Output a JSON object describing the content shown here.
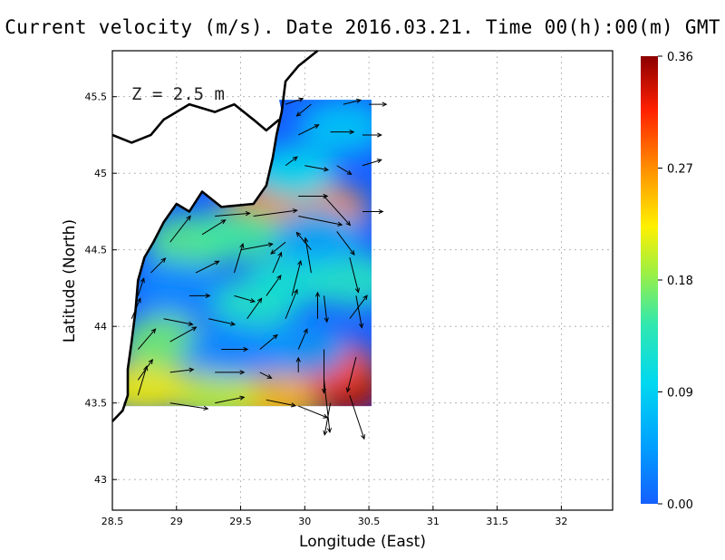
{
  "title": "Current velocity (m/s). Date 2016.03.21. Time 00(h):00(m) GMT",
  "depth_label": "Z = 2.5 m",
  "chart_data": {
    "type": "heatmap",
    "title": "Current velocity (m/s). Date 2016.03.21. Time 00(h):00(m) GMT",
    "xlabel": "Longitude (East)",
    "ylabel": "Latitude (North)",
    "xlim": [
      28.5,
      32.4
    ],
    "ylim": [
      42.8,
      45.8
    ],
    "x_ticks": [
      "28.5",
      "29",
      "29.5",
      "30",
      "30.5",
      "31",
      "31.5",
      "32"
    ],
    "y_ticks": [
      "43",
      "43.5",
      "44",
      "44.5",
      "45",
      "45.5"
    ],
    "grid": true,
    "colorbar": {
      "range": [
        0.0,
        0.36
      ],
      "ticks": [
        "0.00",
        "0.09",
        "0.18",
        "0.27",
        "0.36"
      ],
      "colors": [
        "#1560ff",
        "#00b4ff",
        "#00e6e6",
        "#40e0a0",
        "#b4f03c",
        "#fff000",
        "#ff9600",
        "#ff2800",
        "#8c0000"
      ]
    },
    "coastline_points": [
      [
        28.5,
        43.38
      ],
      [
        28.58,
        43.45
      ],
      [
        28.62,
        43.55
      ],
      [
        28.62,
        43.72
      ],
      [
        28.65,
        43.9
      ],
      [
        28.68,
        44.1
      ],
      [
        28.7,
        44.3
      ],
      [
        28.75,
        44.45
      ],
      [
        28.82,
        44.55
      ],
      [
        28.9,
        44.68
      ],
      [
        29.0,
        44.8
      ],
      [
        29.1,
        44.75
      ],
      [
        29.2,
        44.88
      ],
      [
        29.35,
        44.78
      ],
      [
        29.6,
        44.8
      ],
      [
        29.7,
        44.92
      ],
      [
        29.75,
        45.1
      ],
      [
        29.78,
        45.25
      ],
      [
        29.82,
        45.4
      ],
      [
        29.85,
        45.6
      ],
      [
        29.95,
        45.7
      ],
      [
        30.1,
        45.8
      ]
    ],
    "north_coast_points": [
      [
        28.5,
        45.25
      ],
      [
        28.65,
        45.2
      ],
      [
        28.8,
        45.25
      ],
      [
        28.9,
        45.35
      ],
      [
        29.1,
        45.45
      ],
      [
        29.3,
        45.4
      ],
      [
        29.45,
        45.45
      ],
      [
        29.6,
        45.35
      ],
      [
        29.7,
        45.28
      ],
      [
        29.8,
        45.35
      ]
    ],
    "speed_field": [
      {
        "lon": 29.7,
        "lat": 44.8,
        "speed": 0.33
      },
      {
        "lon": 29.85,
        "lat": 44.75,
        "speed": 0.28
      },
      {
        "lon": 30.15,
        "lat": 44.75,
        "speed": 0.27
      },
      {
        "lon": 30.3,
        "lat": 43.58,
        "speed": 0.35
      },
      {
        "lon": 30.2,
        "lat": 43.75,
        "speed": 0.3
      },
      {
        "lon": 29.75,
        "lat": 43.52,
        "speed": 0.25
      },
      {
        "lon": 29.3,
        "lat": 43.55,
        "speed": 0.2
      },
      {
        "lon": 28.75,
        "lat": 43.6,
        "speed": 0.22
      },
      {
        "lon": 28.9,
        "lat": 43.9,
        "speed": 0.17
      },
      {
        "lon": 29.1,
        "lat": 44.55,
        "speed": 0.16
      },
      {
        "lon": 29.5,
        "lat": 44.6,
        "speed": 0.15
      },
      {
        "lon": 29.9,
        "lat": 45.0,
        "speed": 0.1
      },
      {
        "lon": 30.3,
        "lat": 45.3,
        "speed": 0.08
      },
      {
        "lon": 29.6,
        "lat": 44.15,
        "speed": 0.13
      },
      {
        "lon": 29.9,
        "lat": 44.3,
        "speed": 0.12
      },
      {
        "lon": 30.4,
        "lat": 44.3,
        "speed": 0.13
      },
      {
        "lon": 29.4,
        "lat": 43.85,
        "speed": 0.03
      },
      {
        "lon": 29.0,
        "lat": 44.25,
        "speed": 0.03
      },
      {
        "lon": 30.0,
        "lat": 43.85,
        "speed": 0.04
      },
      {
        "lon": 30.1,
        "lat": 44.6,
        "speed": 0.05
      }
    ],
    "vectors": [
      {
        "lon": 29.85,
        "lat": 45.45,
        "u": 0.12,
        "v": 0.04
      },
      {
        "lon": 30.05,
        "lat": 45.45,
        "u": -0.1,
        "v": -0.08
      },
      {
        "lon": 30.3,
        "lat": 45.45,
        "u": 0.12,
        "v": 0.03
      },
      {
        "lon": 30.5,
        "lat": 45.45,
        "u": 0.12,
        "v": 0.0
      },
      {
        "lon": 29.95,
        "lat": 45.25,
        "u": 0.14,
        "v": 0.07
      },
      {
        "lon": 30.2,
        "lat": 45.27,
        "u": 0.16,
        "v": 0.0
      },
      {
        "lon": 30.45,
        "lat": 45.25,
        "u": 0.13,
        "v": 0.0
      },
      {
        "lon": 29.85,
        "lat": 45.05,
        "u": 0.08,
        "v": 0.06
      },
      {
        "lon": 30.0,
        "lat": 45.05,
        "u": 0.16,
        "v": -0.03
      },
      {
        "lon": 30.25,
        "lat": 45.05,
        "u": 0.1,
        "v": -0.06
      },
      {
        "lon": 30.45,
        "lat": 45.05,
        "u": 0.13,
        "v": 0.04
      },
      {
        "lon": 29.95,
        "lat": 44.85,
        "u": 0.2,
        "v": 0.0
      },
      {
        "lon": 30.15,
        "lat": 44.85,
        "u": 0.18,
        "v": -0.2
      },
      {
        "lon": 30.45,
        "lat": 44.75,
        "u": 0.14,
        "v": 0.0
      },
      {
        "lon": 29.3,
        "lat": 44.72,
        "u": 0.24,
        "v": 0.02
      },
      {
        "lon": 29.6,
        "lat": 44.72,
        "u": 0.3,
        "v": 0.04
      },
      {
        "lon": 29.95,
        "lat": 44.72,
        "u": 0.3,
        "v": -0.06
      },
      {
        "lon": 30.25,
        "lat": 44.62,
        "u": 0.12,
        "v": -0.16
      },
      {
        "lon": 28.95,
        "lat": 44.55,
        "u": 0.14,
        "v": 0.18
      },
      {
        "lon": 29.2,
        "lat": 44.6,
        "u": 0.16,
        "v": 0.1
      },
      {
        "lon": 29.5,
        "lat": 44.5,
        "u": 0.22,
        "v": 0.04
      },
      {
        "lon": 29.85,
        "lat": 44.55,
        "u": -0.1,
        "v": -0.08
      },
      {
        "lon": 30.05,
        "lat": 44.5,
        "u": -0.1,
        "v": 0.12
      },
      {
        "lon": 30.35,
        "lat": 44.45,
        "u": 0.06,
        "v": -0.24
      },
      {
        "lon": 28.8,
        "lat": 44.35,
        "u": 0.1,
        "v": 0.1
      },
      {
        "lon": 29.15,
        "lat": 44.35,
        "u": 0.16,
        "v": 0.08
      },
      {
        "lon": 29.45,
        "lat": 44.35,
        "u": 0.06,
        "v": 0.2
      },
      {
        "lon": 29.75,
        "lat": 44.35,
        "u": 0.06,
        "v": 0.14
      },
      {
        "lon": 30.05,
        "lat": 44.35,
        "u": -0.04,
        "v": 0.24
      },
      {
        "lon": 30.4,
        "lat": 44.2,
        "u": 0.04,
        "v": -0.22
      },
      {
        "lon": 28.7,
        "lat": 44.2,
        "u": 0.04,
        "v": 0.12
      },
      {
        "lon": 29.1,
        "lat": 44.2,
        "u": 0.14,
        "v": 0.0
      },
      {
        "lon": 29.45,
        "lat": 44.2,
        "u": 0.14,
        "v": -0.04
      },
      {
        "lon": 29.7,
        "lat": 44.2,
        "u": 0.1,
        "v": 0.14
      },
      {
        "lon": 29.9,
        "lat": 44.2,
        "u": 0.06,
        "v": 0.24
      },
      {
        "lon": 30.15,
        "lat": 44.2,
        "u": 0.02,
        "v": -0.18
      },
      {
        "lon": 28.65,
        "lat": 44.05,
        "u": 0.06,
        "v": 0.14
      },
      {
        "lon": 28.9,
        "lat": 44.05,
        "u": 0.2,
        "v": -0.04
      },
      {
        "lon": 29.25,
        "lat": 44.05,
        "u": 0.18,
        "v": -0.04
      },
      {
        "lon": 29.55,
        "lat": 44.05,
        "u": 0.1,
        "v": 0.14
      },
      {
        "lon": 29.85,
        "lat": 44.05,
        "u": 0.08,
        "v": 0.2
      },
      {
        "lon": 30.1,
        "lat": 44.05,
        "u": 0.0,
        "v": 0.18
      },
      {
        "lon": 30.35,
        "lat": 44.05,
        "u": 0.12,
        "v": 0.16
      },
      {
        "lon": 28.7,
        "lat": 43.85,
        "u": 0.12,
        "v": 0.14
      },
      {
        "lon": 28.95,
        "lat": 43.9,
        "u": 0.18,
        "v": 0.1
      },
      {
        "lon": 29.35,
        "lat": 43.85,
        "u": 0.18,
        "v": 0.0
      },
      {
        "lon": 29.65,
        "lat": 43.85,
        "u": 0.12,
        "v": 0.1
      },
      {
        "lon": 29.95,
        "lat": 43.85,
        "u": 0.06,
        "v": 0.14
      },
      {
        "lon": 30.15,
        "lat": 43.85,
        "u": 0.0,
        "v": -0.3
      },
      {
        "lon": 30.4,
        "lat": 43.8,
        "u": -0.06,
        "v": -0.24
      },
      {
        "lon": 28.7,
        "lat": 43.65,
        "u": 0.1,
        "v": 0.14
      },
      {
        "lon": 28.95,
        "lat": 43.7,
        "u": 0.16,
        "v": 0.02
      },
      {
        "lon": 29.3,
        "lat": 43.7,
        "u": 0.2,
        "v": 0.0
      },
      {
        "lon": 29.65,
        "lat": 43.7,
        "u": 0.08,
        "v": -0.04
      },
      {
        "lon": 29.95,
        "lat": 43.7,
        "u": 0.0,
        "v": 0.1
      },
      {
        "lon": 30.15,
        "lat": 43.65,
        "u": 0.04,
        "v": -0.36
      },
      {
        "lon": 30.35,
        "lat": 43.55,
        "u": 0.1,
        "v": -0.3
      },
      {
        "lon": 28.7,
        "lat": 43.55,
        "u": 0.06,
        "v": 0.2
      },
      {
        "lon": 28.95,
        "lat": 43.5,
        "u": 0.26,
        "v": -0.04
      },
      {
        "lon": 29.3,
        "lat": 43.5,
        "u": 0.2,
        "v": 0.04
      },
      {
        "lon": 29.7,
        "lat": 43.52,
        "u": 0.2,
        "v": -0.04
      },
      {
        "lon": 29.95,
        "lat": 43.48,
        "u": 0.2,
        "v": -0.08
      },
      {
        "lon": 30.2,
        "lat": 43.5,
        "u": -0.04,
        "v": -0.22
      }
    ]
  }
}
